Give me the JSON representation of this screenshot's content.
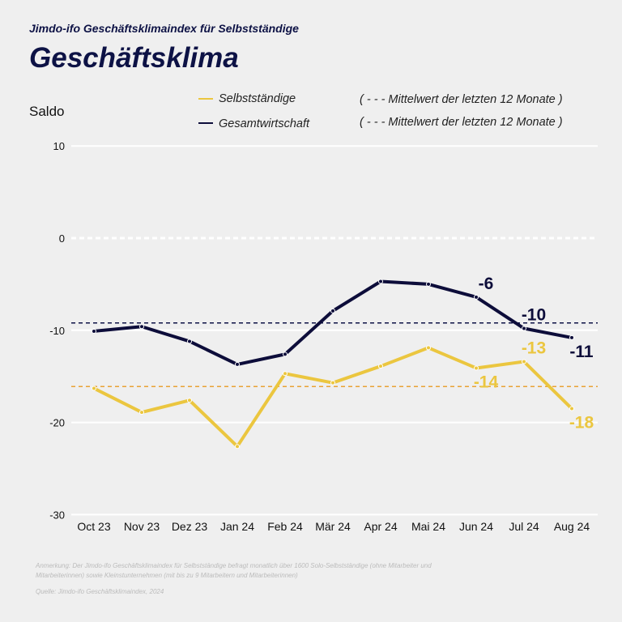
{
  "header": {
    "subtitle": "Jimdo-ifo Geschäftsklimaindex für Selbstständige",
    "title": "Geschäftsklima"
  },
  "legend": {
    "s1": "Selbstständige",
    "s2": "Gesamtwirtschaft",
    "m1": "( - - - Mittelwert der letzten 12 Monate )",
    "m2": "( - - - Mittelwert der letzten 12 Monate )"
  },
  "footer": {
    "note": "Anmerkung: Der Jimdo-ifo Geschäftsklimaindex für Selbstständige befragt monatlich über 1600 Solo-Selbstständige (ohne Mitarbeiter und Mitarbeiterinnen) sowie Kleinstunternehmen (mit bis zu 9 Mitarbeitern und Mitarbeiterinnen)",
    "source": "Quelle: Jimdo-ifo Geschäftsklimaindex, 2024"
  },
  "chart_data": {
    "type": "line",
    "title": "Geschäftsklima",
    "ylabel": "Saldo",
    "ylim": [
      -30,
      10
    ],
    "yticks": [
      "10",
      "0",
      "-10",
      "-20",
      "-30"
    ],
    "ytick_values": [
      10,
      0,
      -10,
      -20,
      -30
    ],
    "categories": [
      "Oct 23",
      "Nov 23",
      "Dez 23",
      "Jan 24",
      "Feb 24",
      "Mär 24",
      "Apr 24",
      "Mai 24",
      "Jun 24",
      "Jul 24",
      "Aug 24"
    ],
    "series": [
      {
        "name": "Selbstständige",
        "color": "#ebc63f",
        "values": [
          -16.3,
          -18.9,
          -17.6,
          -22.6,
          -14.7,
          -15.7,
          -13.9,
          -11.9,
          -14.1,
          -13.4,
          -18.5
        ],
        "mean": -16.1,
        "mean_color": "#e8a234",
        "labels": [
          {
            "index": 8,
            "text": "-14",
            "pos": "below"
          },
          {
            "index": 9,
            "text": "-13",
            "pos": "above"
          },
          {
            "index": 10,
            "text": "-18",
            "pos": "below"
          }
        ]
      },
      {
        "name": "Gesamtwirtschaft",
        "color": "#0d0d3a",
        "values": [
          -10.1,
          -9.6,
          -11.2,
          -13.7,
          -12.6,
          -7.9,
          -4.7,
          -5.0,
          -6.4,
          -9.8,
          -10.8
        ],
        "mean": -9.2,
        "mean_color": "#0d1245",
        "labels": [
          {
            "index": 8,
            "text": "-6",
            "pos": "above"
          },
          {
            "index": 9,
            "text": "-10",
            "pos": "above"
          },
          {
            "index": 10,
            "text": "-11",
            "pos": "below"
          }
        ]
      }
    ]
  }
}
